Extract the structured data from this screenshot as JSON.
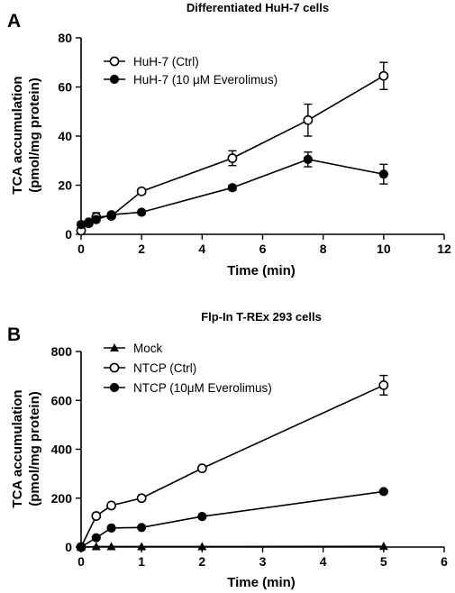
{
  "chart_data": [
    {
      "panel_label": "A",
      "type": "line",
      "title": "Differentiated HuH-7 cells",
      "xlabel": "Time (min)",
      "ylabel_line1": "TCA accumulation",
      "ylabel_line2": "(pmol/mg protein)",
      "xlim": [
        0,
        12
      ],
      "ylim": [
        0,
        80
      ],
      "xticks": [
        0,
        2,
        4,
        6,
        8,
        10,
        12
      ],
      "yticks": [
        0,
        20,
        40,
        60,
        80
      ],
      "grid": false,
      "legend_position": "top-left",
      "series": [
        {
          "name": "HuH-7 (Ctrl)",
          "marker": "open-circle",
          "x": [
            0,
            0.25,
            0.5,
            1,
            2,
            5,
            7.5,
            10
          ],
          "y": [
            1.5,
            4.5,
            7,
            7.5,
            17.5,
            31,
            46.5,
            64.5
          ],
          "err": [
            0.8,
            1.0,
            1.8,
            1.0,
            1.0,
            3.0,
            6.5,
            5.5
          ]
        },
        {
          "name": "HuH-7 (10 μM Everolimus)",
          "marker": "filled-circle",
          "x": [
            0,
            0.25,
            0.5,
            1,
            2,
            5,
            7.5,
            10
          ],
          "y": [
            4,
            5,
            6,
            8,
            9,
            19,
            30.5,
            24.5
          ],
          "err": [
            1.0,
            0.8,
            0.6,
            0.8,
            0.8,
            1.0,
            3.0,
            4.0
          ]
        }
      ]
    },
    {
      "panel_label": "B",
      "type": "line",
      "title": "Flp-In T-REx 293 cells",
      "xlabel": "Time (min)",
      "ylabel_line1": "TCA accumulation",
      "ylabel_line2": "(pmol/mg protein)",
      "xlim": [
        0,
        6
      ],
      "ylim": [
        0,
        800
      ],
      "xticks": [
        0,
        1,
        2,
        3,
        4,
        5,
        6
      ],
      "yticks": [
        0,
        200,
        400,
        600,
        800
      ],
      "grid": false,
      "legend_position": "top-left",
      "series": [
        {
          "name": "Mock",
          "marker": "filled-triangle",
          "x": [
            0,
            0.25,
            0.5,
            1,
            2,
            5
          ],
          "y": [
            0,
            2,
            2,
            2,
            2,
            3
          ],
          "err": [
            0,
            0,
            0,
            0,
            0,
            0
          ]
        },
        {
          "name": "NTCP (Ctrl)",
          "marker": "open-circle",
          "x": [
            0,
            0.25,
            0.5,
            1,
            2,
            5
          ],
          "y": [
            0,
            127,
            170,
            200,
            322,
            662
          ],
          "err": [
            0,
            8,
            8,
            8,
            8,
            40
          ]
        },
        {
          "name": "NTCP (10μM Everolimus)",
          "marker": "filled-circle",
          "x": [
            0,
            0.25,
            0.5,
            1,
            2,
            5
          ],
          "y": [
            0,
            38,
            78,
            80,
            125,
            227
          ],
          "err": [
            0,
            4,
            4,
            4,
            5,
            6
          ]
        }
      ]
    }
  ]
}
